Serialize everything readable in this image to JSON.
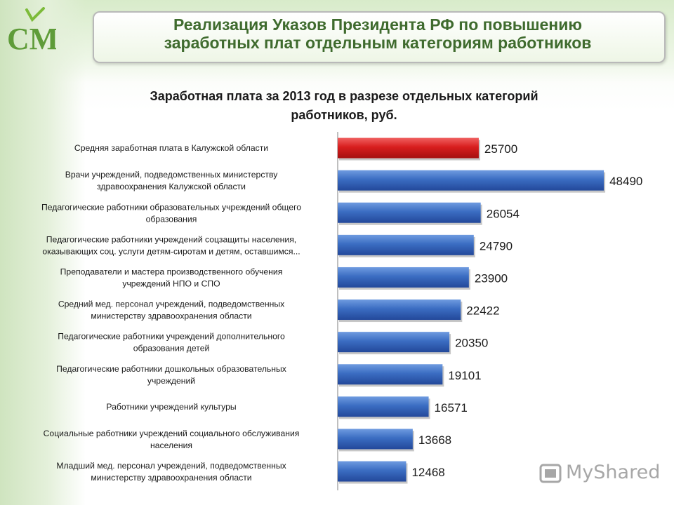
{
  "header": {
    "title_line1": "Реализация Указов Президента РФ по повышению",
    "title_line2": "заработных плат отдельным  категориям работников"
  },
  "logo": {
    "text": "СМТ"
  },
  "watermark": {
    "text": "MyShared"
  },
  "colors": {
    "highlight": "#d81e1e",
    "bar": "#3565b8",
    "title_green": "#3f6b2e"
  },
  "chart_data": {
    "type": "bar",
    "orientation": "horizontal",
    "title_line1": "Заработная плата за 2013 год в разрезе отдельных категорий",
    "title_line2": "работников, руб.",
    "categories": [
      [
        "Средняя заработная плата в Калужской области"
      ],
      [
        "Врачи учреждений, подведомственных министерству",
        "здравоохранения Калужской области"
      ],
      [
        "Педагогические работники образовательных учреждений общего",
        "образования"
      ],
      [
        "Педагогические работники учреждений соцзащиты населения,",
        "оказывающих соц. услуги детям-сиротам и детям, оставшимся..."
      ],
      [
        "Преподаватели и мастера производственного обучения",
        "учреждений НПО и СПО"
      ],
      [
        "Средний мед. персонал учреждений, подведомственных",
        "министерству здравоохранения области"
      ],
      [
        "Педагогические работники учреждений дополнительного",
        "образования детей"
      ],
      [
        "Педагогические работники дошкольных образовательных",
        "учреждений"
      ],
      [
        "Работники учреждений культуры"
      ],
      [
        "Социальные работники учреждений социального обслуживания",
        "населения"
      ],
      [
        "Младший мед. персонал учреждений, подведомственных",
        "министерству здравоохранения области"
      ]
    ],
    "values": [
      25700,
      48490,
      26054,
      24790,
      23900,
      22422,
      20350,
      19101,
      16571,
      13668,
      12468
    ],
    "highlight_index": 0,
    "xlim": [
      0,
      55000
    ],
    "grid": false
  }
}
